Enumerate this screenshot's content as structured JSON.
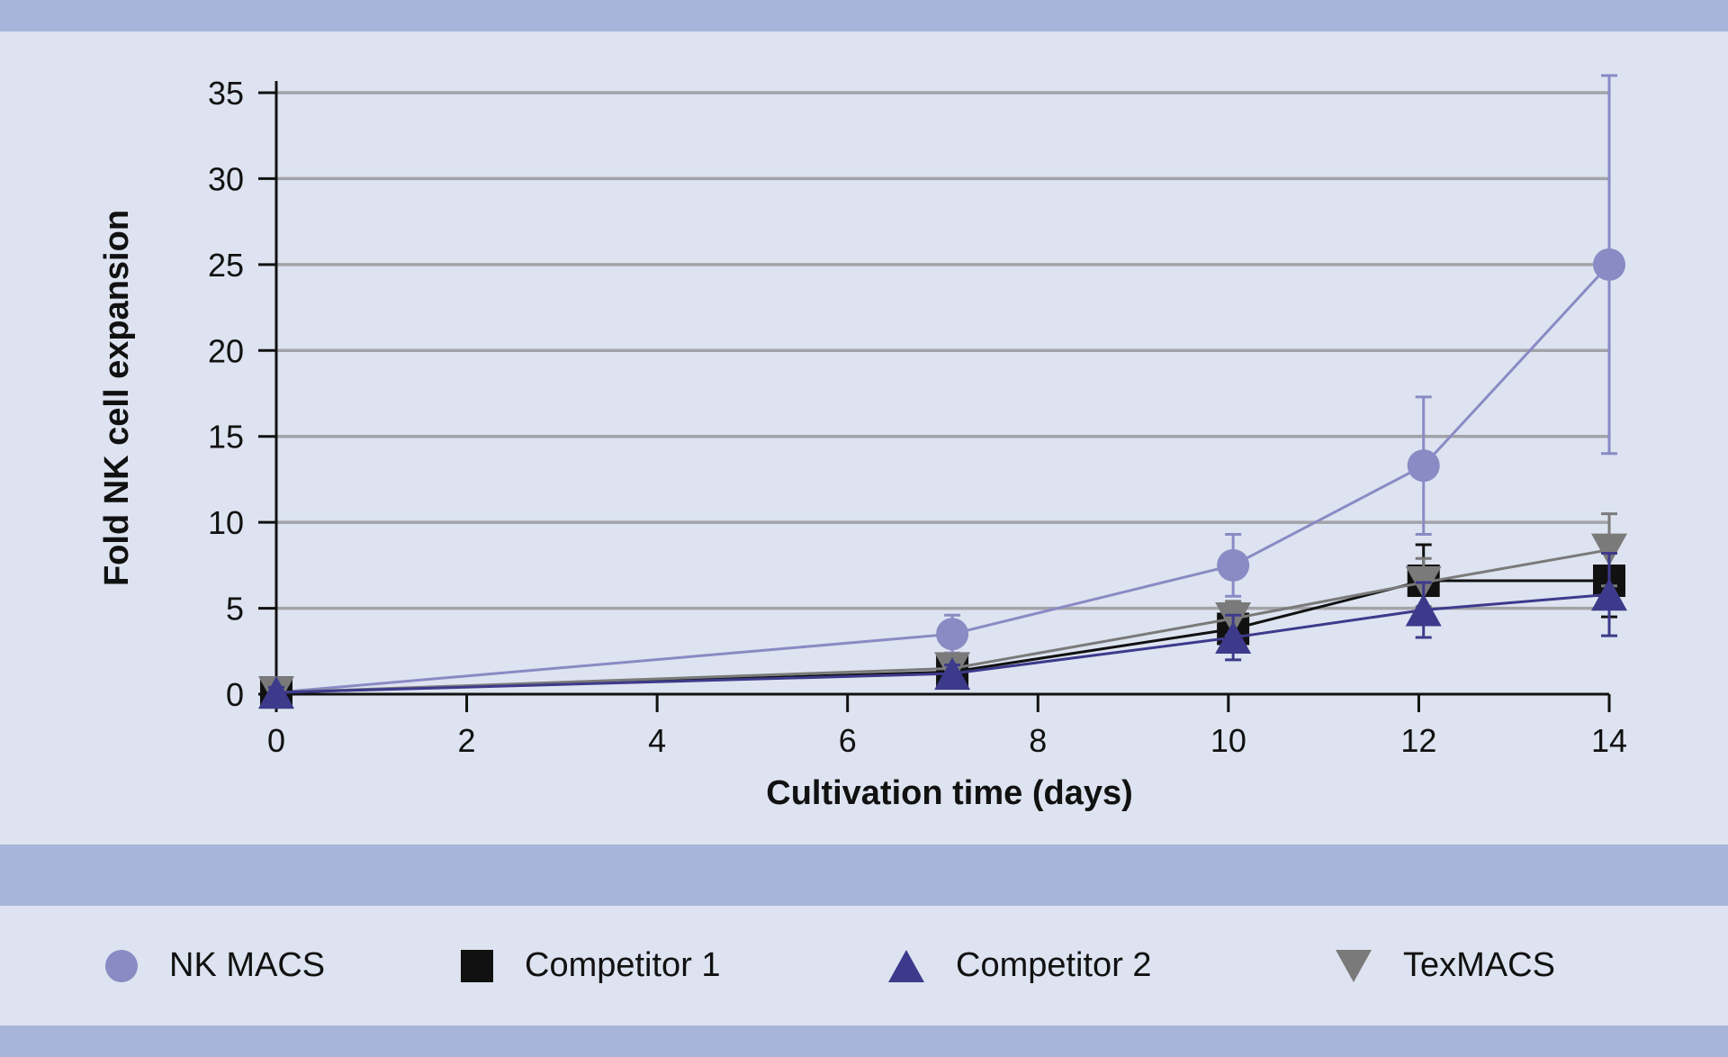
{
  "chart_data": {
    "type": "line",
    "title": "",
    "xlabel": "Cultivation time (days)",
    "ylabel": "Fold NK cell expansion",
    "xlim": [
      0,
      14
    ],
    "ylim": [
      0,
      35
    ],
    "xticks": [
      0,
      2,
      4,
      6,
      8,
      10,
      12,
      14
    ],
    "yticks": [
      0,
      5,
      10,
      15,
      20,
      25,
      30,
      35
    ],
    "grid": "horizontal",
    "legend_position": "bottom",
    "series": [
      {
        "name": "NK MACS",
        "marker": "circle",
        "color": "#8a8ac4",
        "x": [
          0,
          7.1,
          10.05,
          12.05,
          14
        ],
        "y": [
          0.1,
          3.5,
          7.5,
          13.3,
          25
        ],
        "error": [
          0.5,
          1.1,
          1.8,
          4.0,
          11.0
        ]
      },
      {
        "name": "Competitor 1",
        "marker": "square",
        "color": "#111111",
        "x": [
          0,
          7.1,
          10.05,
          12.05,
          14
        ],
        "y": [
          0.1,
          1.3,
          3.8,
          6.6,
          6.6
        ],
        "error": [
          0.5,
          0.6,
          0.9,
          2.1,
          2.1
        ]
      },
      {
        "name": "Competitor 2",
        "marker": "triangle-up",
        "color": "#3d3a8c",
        "x": [
          0,
          7.1,
          10.05,
          12.05,
          14
        ],
        "y": [
          0.1,
          1.2,
          3.3,
          4.9,
          5.8
        ],
        "error": [
          0.3,
          0.5,
          1.3,
          1.6,
          2.4
        ]
      },
      {
        "name": "TexMACS",
        "marker": "triangle-down",
        "color": "#7a7a7a",
        "x": [
          0,
          7.1,
          10.05,
          12.05,
          14
        ],
        "y": [
          0.1,
          1.5,
          4.4,
          6.5,
          8.4
        ],
        "error": [
          0.4,
          0.7,
          1.0,
          1.4,
          2.1
        ]
      }
    ]
  }
}
